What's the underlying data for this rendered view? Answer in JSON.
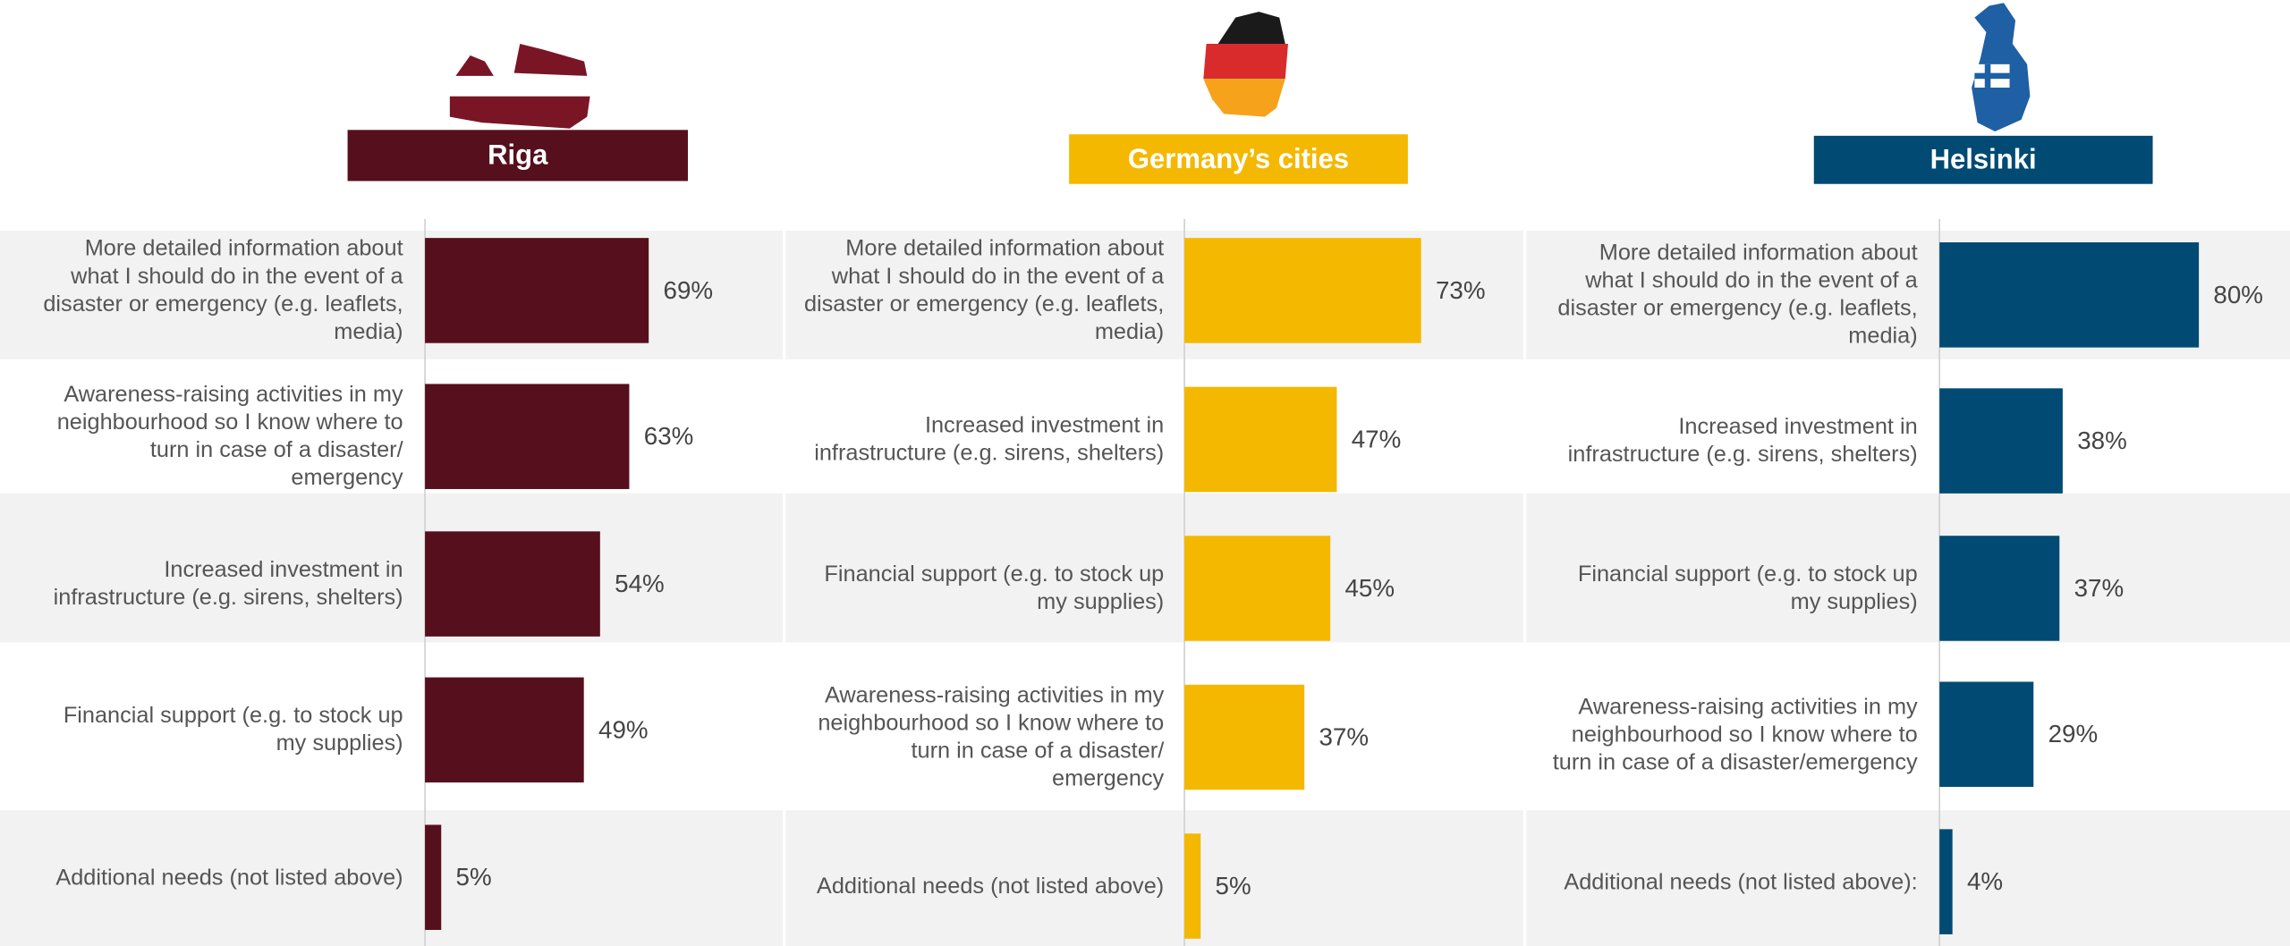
{
  "chart_data": [
    {
      "type": "bar",
      "orientation": "horizontal",
      "title": "Riga",
      "color": "#560f1c",
      "xlim": [
        0,
        100
      ],
      "categories": [
        "More detailed information about what I should do in the event of a disaster or emergency (e.g. leaflets, media)",
        "Awareness-raising activities in my neighbourhood so I know where to turn in case of a disaster/ emergency",
        "Increased investment in infrastructure (e.g. sirens, shelters)",
        "Financial support (e.g. to stock up my supplies)",
        "Additional needs (not listed above)"
      ],
      "values": [
        69,
        63,
        54,
        49,
        5
      ],
      "value_labels": [
        "69%",
        "63%",
        "54%",
        "49%",
        "5%"
      ]
    },
    {
      "type": "bar",
      "orientation": "horizontal",
      "title": "Germany’s cities",
      "color": "#f4b800",
      "xlim": [
        0,
        100
      ],
      "categories": [
        "More detailed information about what I should do in the event of a disaster or emergency (e.g. leaflets, media)",
        "Increased investment in infrastructure (e.g. sirens, shelters)",
        "Financial support (e.g. to stock up my supplies)",
        "Awareness-raising activities in my neighbourhood so I know where to turn in case of a disaster/ emergency",
        "Additional needs (not listed above)"
      ],
      "values": [
        73,
        47,
        45,
        37,
        5
      ],
      "value_labels": [
        "73%",
        "47%",
        "45%",
        "37%",
        "5%"
      ]
    },
    {
      "type": "bar",
      "orientation": "horizontal",
      "title": "Helsinki",
      "color": "#004a73",
      "xlim": [
        0,
        100
      ],
      "categories": [
        "More detailed information about what I should do in the event of a disaster or emergency (e.g. leaflets, media)",
        "Increased investment in infrastructure (e.g. sirens, shelters)",
        "Financial support (e.g. to stock up my supplies)",
        "Awareness-raising activities in my neighbourhood so I know where to turn in case of a disaster/emergency",
        "Additional needs (not listed above):"
      ],
      "values": [
        80,
        38,
        37,
        29,
        4
      ],
      "value_labels": [
        "80%",
        "38%",
        "37%",
        "29%",
        "4%"
      ]
    }
  ]
}
